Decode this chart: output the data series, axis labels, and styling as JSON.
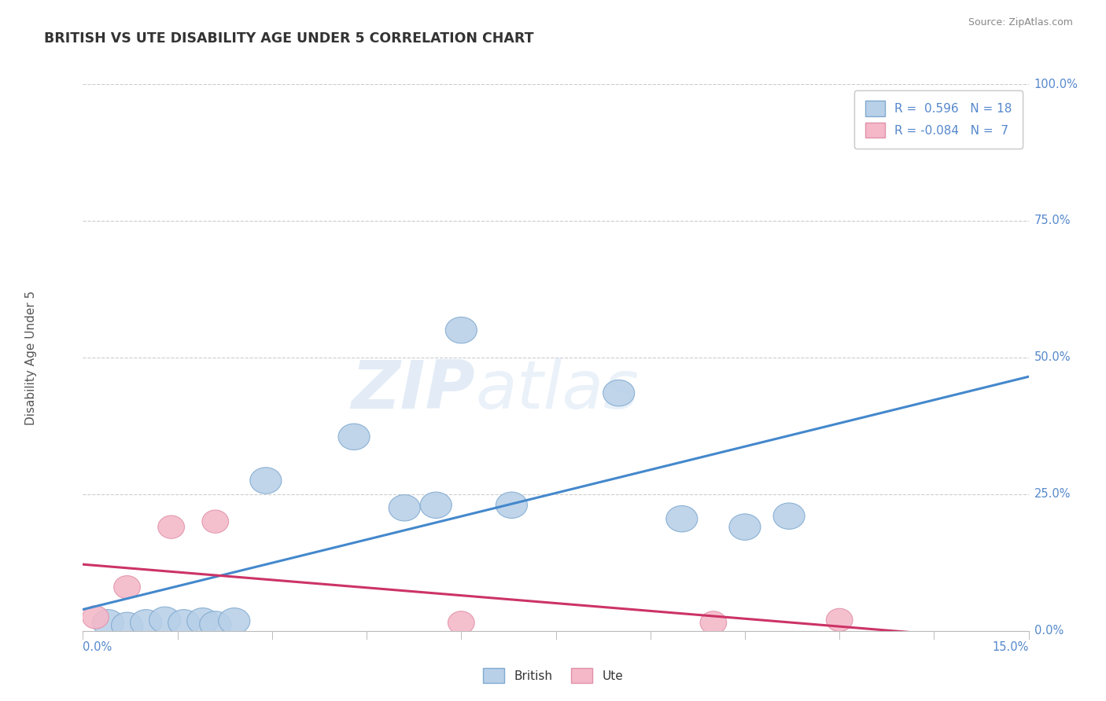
{
  "title": "BRITISH VS UTE DISABILITY AGE UNDER 5 CORRELATION CHART",
  "source": "Source: ZipAtlas.com",
  "ylabel": "Disability Age Under 5",
  "yticks": [
    0.0,
    25.0,
    50.0,
    75.0,
    100.0
  ],
  "xmin": 0.0,
  "xmax": 15.0,
  "ymin": 0.0,
  "ymax": 100.0,
  "british_R": 0.596,
  "british_N": 18,
  "ute_R": -0.084,
  "ute_N": 7,
  "british_color": "#b8d0e8",
  "british_edge_color": "#80aad0",
  "ute_color": "#f4b8c8",
  "ute_edge_color": "#e090a8",
  "trend_british_color": "#4488cc",
  "trend_ute_color": "#cc3366",
  "british_points": [
    [
      0.4,
      1.5
    ],
    [
      0.7,
      1.0
    ],
    [
      1.0,
      1.5
    ],
    [
      1.3,
      2.0
    ],
    [
      1.6,
      1.5
    ],
    [
      1.9,
      1.8
    ],
    [
      2.1,
      1.2
    ],
    [
      2.4,
      1.8
    ],
    [
      2.9,
      27.5
    ],
    [
      4.3,
      35.5
    ],
    [
      5.1,
      22.5
    ],
    [
      5.6,
      23.0
    ],
    [
      6.0,
      55.0
    ],
    [
      6.8,
      23.0
    ],
    [
      8.5,
      43.5
    ],
    [
      9.5,
      20.5
    ],
    [
      10.5,
      19.0
    ],
    [
      11.2,
      21.0
    ]
  ],
  "ute_points": [
    [
      0.2,
      2.5
    ],
    [
      0.7,
      8.0
    ],
    [
      1.4,
      19.0
    ],
    [
      2.1,
      20.0
    ],
    [
      6.0,
      1.5
    ],
    [
      10.0,
      1.5
    ],
    [
      12.0,
      2.0
    ]
  ],
  "watermark_zip": "ZIP",
  "watermark_atlas": "atlas",
  "background_color": "#ffffff",
  "grid_color": "#cccccc",
  "tick_label_color": "#5588cc",
  "title_color": "#333333",
  "source_color": "#888888",
  "ylabel_color": "#555555",
  "legend_border_color": "#cccccc"
}
